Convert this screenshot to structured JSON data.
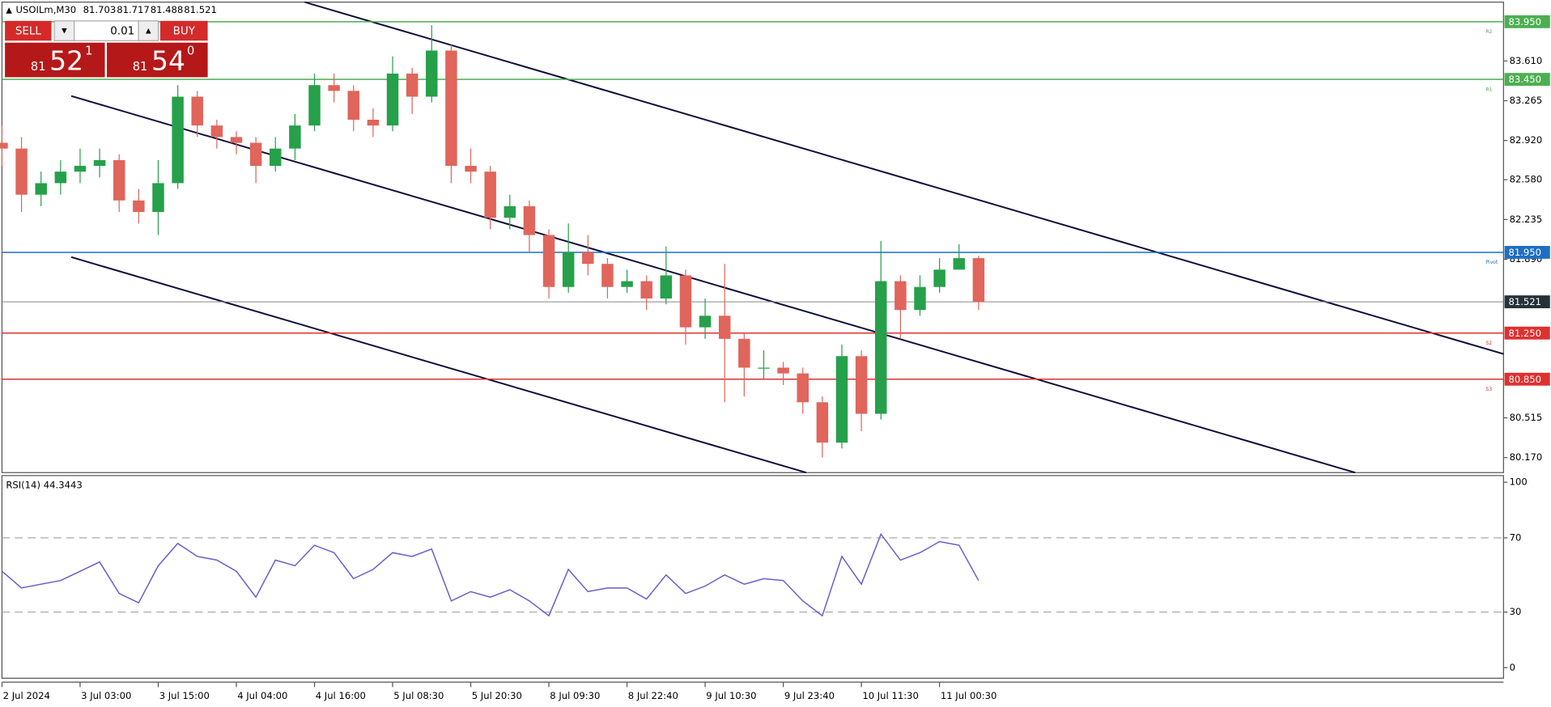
{
  "chart_data": {
    "type": "candlestick",
    "symbol": "USOILm,M30",
    "header_ohlc": [
      81.703,
      81.717,
      81.488,
      81.521
    ],
    "x": [
      0,
      4,
      8,
      12,
      16,
      20,
      24,
      28,
      32,
      36,
      40,
      44,
      48,
      52,
      56,
      60,
      64,
      68,
      72,
      76,
      80,
      84,
      88,
      92,
      96,
      100,
      104,
      108,
      112,
      116,
      120,
      124,
      128,
      132,
      136,
      140,
      144,
      148,
      152,
      156,
      160,
      164,
      168,
      172,
      176,
      180,
      184,
      188,
      192,
      196,
      200
    ],
    "open": [
      82.9,
      82.85,
      82.45,
      82.55,
      82.65,
      82.7,
      82.75,
      82.4,
      82.3,
      82.55,
      83.3,
      83.05,
      82.95,
      82.9,
      82.7,
      82.85,
      83.05,
      83.4,
      83.35,
      83.1,
      83.05,
      83.5,
      83.3,
      83.7,
      82.7,
      82.65,
      82.25,
      82.35,
      82.1,
      81.65,
      81.95,
      81.85,
      81.65,
      81.7,
      81.55,
      81.75,
      81.3,
      81.4,
      81.2,
      80.95,
      80.95,
      80.9,
      80.65,
      80.3,
      81.05,
      80.55,
      81.7,
      81.45,
      81.65,
      81.8,
      81.9
    ],
    "high": [
      83.05,
      82.95,
      82.65,
      82.75,
      82.85,
      82.85,
      82.8,
      82.5,
      82.75,
      83.4,
      83.35,
      83.1,
      83.0,
      82.95,
      82.95,
      83.15,
      83.5,
      83.5,
      83.4,
      83.2,
      83.65,
      83.55,
      83.92,
      83.75,
      82.85,
      82.7,
      82.45,
      82.4,
      82.15,
      82.2,
      82.1,
      81.9,
      81.8,
      81.75,
      82.0,
      81.8,
      81.55,
      81.85,
      81.25,
      81.1,
      81.0,
      80.95,
      80.7,
      81.15,
      81.1,
      82.05,
      81.75,
      81.75,
      81.9,
      82.02,
      81.92
    ],
    "low": [
      82.7,
      82.3,
      82.35,
      82.45,
      82.55,
      82.6,
      82.3,
      82.2,
      82.1,
      82.5,
      82.95,
      82.85,
      82.8,
      82.55,
      82.65,
      82.75,
      83.0,
      83.25,
      83.0,
      82.95,
      83.0,
      83.15,
      83.25,
      82.55,
      82.55,
      82.15,
      82.15,
      81.95,
      81.55,
      81.6,
      81.75,
      81.55,
      81.6,
      81.45,
      81.5,
      81.15,
      81.2,
      80.65,
      80.7,
      80.85,
      80.8,
      80.55,
      80.17,
      80.25,
      80.4,
      80.5,
      81.2,
      81.4,
      81.6,
      81.8,
      81.45
    ],
    "close": [
      82.85,
      82.45,
      82.55,
      82.65,
      82.7,
      82.75,
      82.4,
      82.3,
      82.55,
      83.3,
      83.05,
      82.95,
      82.9,
      82.7,
      82.85,
      83.05,
      83.4,
      83.35,
      83.1,
      83.05,
      83.5,
      83.3,
      83.7,
      82.7,
      82.65,
      82.25,
      82.35,
      82.1,
      81.65,
      81.95,
      81.85,
      81.65,
      81.7,
      81.55,
      81.75,
      81.3,
      81.4,
      81.2,
      80.95,
      80.95,
      80.9,
      80.65,
      80.3,
      81.05,
      80.55,
      81.7,
      81.45,
      81.65,
      81.8,
      81.9,
      81.52
    ],
    "up_color": "#26a04a",
    "down_color": "#e0655b",
    "xlim": [
      0,
      307.5
    ],
    "xticks": [
      {
        "value": 0,
        "label": "2 Jul 2024"
      },
      {
        "value": 16,
        "label": "3 Jul 03:00"
      },
      {
        "value": 32,
        "label": "3 Jul 15:00"
      },
      {
        "value": 48,
        "label": "4 Jul 04:00"
      },
      {
        "value": 64,
        "label": "4 Jul 16:00"
      },
      {
        "value": 80,
        "label": "5 Jul 08:30"
      },
      {
        "value": 96,
        "label": "5 Jul 20:30"
      },
      {
        "value": 112,
        "label": "8 Jul 09:30"
      },
      {
        "value": 128,
        "label": "8 Jul 22:40"
      },
      {
        "value": 144,
        "label": "9 Jul 10:30"
      },
      {
        "value": 160,
        "label": "9 Jul 23:40"
      },
      {
        "value": 176,
        "label": "10 Jul 11:30"
      },
      {
        "value": 192,
        "label": "11 Jul 00:30"
      }
    ],
    "ylim": [
      80.04,
      84.12
    ],
    "yticks": [
      {
        "value": 83.61,
        "label": "83.610"
      },
      {
        "value": 83.265,
        "label": "83.265"
      },
      {
        "value": 82.92,
        "label": "82.920"
      },
      {
        "value": 82.58,
        "label": "82.580"
      },
      {
        "value": 82.235,
        "label": "82.235"
      },
      {
        "value": 81.89,
        "label": "81.890"
      },
      {
        "value": 80.515,
        "label": "80.515"
      },
      {
        "value": 80.17,
        "label": "80.170"
      }
    ],
    "levels": [
      {
        "name": "R2",
        "value": 83.95,
        "label": "83.950",
        "color": "#4caf50"
      },
      {
        "name": "R1",
        "value": 83.45,
        "label": "83.450",
        "color": "#4caf50"
      },
      {
        "name": "Pivot",
        "value": 81.95,
        "label": "81.950",
        "color": "#1e6fc4"
      },
      {
        "name": "S2",
        "value": 81.25,
        "label": "81.250",
        "color": "#e03030"
      },
      {
        "name": "S3",
        "value": 80.85,
        "label": "80.850",
        "color": "#e03030"
      }
    ],
    "current": {
      "value": 81.521,
      "label": "81.521",
      "color": "#263238"
    },
    "rsi": {
      "label": "RSI(14)",
      "value": 44.3443,
      "color": "#6a5acd",
      "values": [
        52,
        43,
        45,
        47,
        52,
        57,
        40,
        35,
        55,
        67,
        60,
        58,
        52,
        38,
        58,
        55,
        66,
        62,
        48,
        53,
        62,
        60,
        64,
        36,
        41,
        38,
        42,
        36,
        28,
        53,
        41,
        43,
        43,
        37,
        50,
        40,
        44,
        50,
        45,
        48,
        47,
        36,
        28,
        60,
        45,
        72,
        58,
        62,
        68,
        66,
        47
      ],
      "ylim": [
        -5.7,
        103.6
      ],
      "yticks": [
        100,
        70,
        30,
        0
      ],
      "dashed_levels": [
        70,
        30
      ]
    }
  },
  "trade_panel": {
    "sell": "SELL",
    "buy": "BUY",
    "lot": "0.01",
    "bid": {
      "big": "81",
      "mid": "52",
      "small": "1"
    },
    "ask": {
      "big": "81",
      "mid": "54",
      "small": "0"
    }
  }
}
